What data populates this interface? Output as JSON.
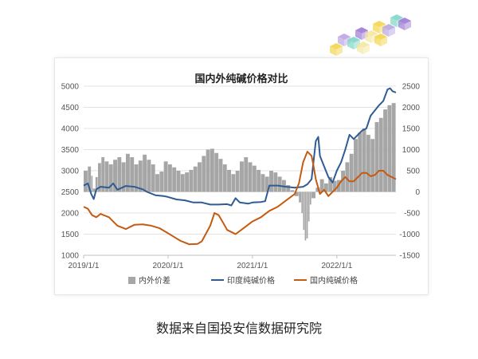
{
  "chart_data": {
    "type": "bar+line",
    "title": "国内外纯碱价格对比",
    "x_tick_labels": [
      "2019/1/1",
      "2020/1/1",
      "2021/1/1",
      "2022/1/1"
    ],
    "y_left": {
      "ylim": [
        1000,
        5000
      ],
      "ticks": [
        "1000",
        "1500",
        "2000",
        "2500",
        "3000",
        "3500",
        "4000",
        "4500",
        "5000"
      ]
    },
    "y_right": {
      "ylim": [
        -1500,
        2500
      ],
      "ticks": [
        "-1500",
        "-1000",
        "-500",
        "0",
        "500",
        "1000",
        "1500",
        "2000",
        "2500"
      ]
    },
    "x_domain": [
      2019.0,
      2022.7
    ],
    "grid": "horizontal",
    "legend_position": "bottom",
    "series": [
      {
        "name": "内外价差",
        "kind": "bar",
        "axis": "right",
        "color": "#a6a6a6",
        "points": [
          [
            2019.0,
            500
          ],
          [
            2019.05,
            600
          ],
          [
            2019.09,
            380
          ],
          [
            2019.11,
            80
          ],
          [
            2019.14,
            350
          ],
          [
            2019.17,
            680
          ],
          [
            2019.21,
            820
          ],
          [
            2019.25,
            720
          ],
          [
            2019.3,
            650
          ],
          [
            2019.35,
            760
          ],
          [
            2019.4,
            820
          ],
          [
            2019.45,
            700
          ],
          [
            2019.5,
            900
          ],
          [
            2019.55,
            820
          ],
          [
            2019.6,
            650
          ],
          [
            2019.65,
            740
          ],
          [
            2019.7,
            880
          ],
          [
            2019.75,
            760
          ],
          [
            2019.8,
            650
          ],
          [
            2019.85,
            420
          ],
          [
            2019.9,
            480
          ],
          [
            2019.95,
            720
          ],
          [
            2020.0,
            650
          ],
          [
            2020.05,
            580
          ],
          [
            2020.1,
            500
          ],
          [
            2020.15,
            420
          ],
          [
            2020.2,
            460
          ],
          [
            2020.25,
            520
          ],
          [
            2020.3,
            600
          ],
          [
            2020.35,
            700
          ],
          [
            2020.4,
            850
          ],
          [
            2020.45,
            1000
          ],
          [
            2020.5,
            1020
          ],
          [
            2020.55,
            920
          ],
          [
            2020.6,
            780
          ],
          [
            2020.65,
            650
          ],
          [
            2020.7,
            520
          ],
          [
            2020.75,
            420
          ],
          [
            2020.8,
            500
          ],
          [
            2020.85,
            720
          ],
          [
            2020.9,
            820
          ],
          [
            2020.95,
            700
          ],
          [
            2021.0,
            620
          ],
          [
            2021.05,
            520
          ],
          [
            2021.1,
            420
          ],
          [
            2021.15,
            360
          ],
          [
            2021.2,
            500
          ],
          [
            2021.25,
            460
          ],
          [
            2021.3,
            360
          ],
          [
            2021.35,
            280
          ],
          [
            2021.4,
            160
          ],
          [
            2021.45,
            40
          ],
          [
            2021.5,
            -100
          ],
          [
            2021.55,
            -250
          ],
          [
            2021.58,
            -500
          ],
          [
            2021.6,
            -900
          ],
          [
            2021.62,
            -1150
          ],
          [
            2021.64,
            -1100
          ],
          [
            2021.66,
            -700
          ],
          [
            2021.68,
            -300
          ],
          [
            2021.7,
            -150
          ],
          [
            2021.75,
            100
          ],
          [
            2021.8,
            300
          ],
          [
            2021.85,
            200
          ],
          [
            2021.9,
            350
          ],
          [
            2021.95,
            260
          ],
          [
            2022.0,
            280
          ],
          [
            2022.05,
            500
          ],
          [
            2022.1,
            700
          ],
          [
            2022.15,
            900
          ],
          [
            2022.2,
            1250
          ],
          [
            2022.25,
            1400
          ],
          [
            2022.3,
            1500
          ],
          [
            2022.35,
            1350
          ],
          [
            2022.4,
            1250
          ],
          [
            2022.45,
            1650
          ],
          [
            2022.5,
            1750
          ],
          [
            2022.55,
            1950
          ],
          [
            2022.6,
            2050
          ],
          [
            2022.65,
            2100
          ]
        ]
      },
      {
        "name": "印度纯碱价格",
        "kind": "line",
        "axis": "left",
        "color": "#2e5c93",
        "points": [
          [
            2019.0,
            2650
          ],
          [
            2019.05,
            2700
          ],
          [
            2019.09,
            2450
          ],
          [
            2019.12,
            2330
          ],
          [
            2019.15,
            2560
          ],
          [
            2019.2,
            2620
          ],
          [
            2019.3,
            2600
          ],
          [
            2019.35,
            2700
          ],
          [
            2019.4,
            2550
          ],
          [
            2019.5,
            2640
          ],
          [
            2019.6,
            2620
          ],
          [
            2019.7,
            2560
          ],
          [
            2019.75,
            2500
          ],
          [
            2019.85,
            2420
          ],
          [
            2019.95,
            2400
          ],
          [
            2020.0,
            2380
          ],
          [
            2020.1,
            2320
          ],
          [
            2020.2,
            2300
          ],
          [
            2020.3,
            2250
          ],
          [
            2020.4,
            2250
          ],
          [
            2020.5,
            2200
          ],
          [
            2020.6,
            2200
          ],
          [
            2020.7,
            2210
          ],
          [
            2020.75,
            2180
          ],
          [
            2020.8,
            2350
          ],
          [
            2020.85,
            2250
          ],
          [
            2020.95,
            2220
          ],
          [
            2021.0,
            2250
          ],
          [
            2021.1,
            2260
          ],
          [
            2021.15,
            2280
          ],
          [
            2021.2,
            2650
          ],
          [
            2021.3,
            2650
          ],
          [
            2021.4,
            2620
          ],
          [
            2021.5,
            2600
          ],
          [
            2021.6,
            2620
          ],
          [
            2021.65,
            2680
          ],
          [
            2021.7,
            2800
          ],
          [
            2021.75,
            3700
          ],
          [
            2021.78,
            3800
          ],
          [
            2021.8,
            3350
          ],
          [
            2021.85,
            3100
          ],
          [
            2021.9,
            2850
          ],
          [
            2021.95,
            2720
          ],
          [
            2022.0,
            3000
          ],
          [
            2022.05,
            3200
          ],
          [
            2022.1,
            3500
          ],
          [
            2022.15,
            3850
          ],
          [
            2022.2,
            3750
          ],
          [
            2022.25,
            3850
          ],
          [
            2022.3,
            3950
          ],
          [
            2022.35,
            4000
          ],
          [
            2022.4,
            4300
          ],
          [
            2022.5,
            4550
          ],
          [
            2022.55,
            4650
          ],
          [
            2022.6,
            4920
          ],
          [
            2022.63,
            4950
          ],
          [
            2022.66,
            4880
          ],
          [
            2022.7,
            4850
          ]
        ]
      },
      {
        "name": "国内纯碱价格",
        "kind": "line",
        "axis": "left",
        "color": "#c55a11",
        "points": [
          [
            2019.0,
            2150
          ],
          [
            2019.05,
            2100
          ],
          [
            2019.1,
            1950
          ],
          [
            2019.15,
            1900
          ],
          [
            2019.2,
            1980
          ],
          [
            2019.3,
            1900
          ],
          [
            2019.4,
            1700
          ],
          [
            2019.5,
            1620
          ],
          [
            2019.6,
            1720
          ],
          [
            2019.7,
            1730
          ],
          [
            2019.8,
            1700
          ],
          [
            2019.9,
            1640
          ],
          [
            2020.0,
            1520
          ],
          [
            2020.1,
            1400
          ],
          [
            2020.15,
            1340
          ],
          [
            2020.2,
            1300
          ],
          [
            2020.25,
            1260
          ],
          [
            2020.35,
            1270
          ],
          [
            2020.4,
            1330
          ],
          [
            2020.5,
            1700
          ],
          [
            2020.55,
            2000
          ],
          [
            2020.6,
            1950
          ],
          [
            2020.65,
            1780
          ],
          [
            2020.7,
            1600
          ],
          [
            2020.75,
            1550
          ],
          [
            2020.8,
            1500
          ],
          [
            2020.9,
            1650
          ],
          [
            2021.0,
            1800
          ],
          [
            2021.1,
            1900
          ],
          [
            2021.2,
            2050
          ],
          [
            2021.3,
            2150
          ],
          [
            2021.4,
            2300
          ],
          [
            2021.5,
            2450
          ],
          [
            2021.55,
            2700
          ],
          [
            2021.6,
            3200
          ],
          [
            2021.65,
            3450
          ],
          [
            2021.7,
            3350
          ],
          [
            2021.72,
            3150
          ],
          [
            2021.75,
            2800
          ],
          [
            2021.8,
            2450
          ],
          [
            2021.85,
            2550
          ],
          [
            2021.9,
            2400
          ],
          [
            2021.95,
            2500
          ],
          [
            2022.0,
            2600
          ],
          [
            2022.05,
            2750
          ],
          [
            2022.1,
            2850
          ],
          [
            2022.15,
            2750
          ],
          [
            2022.2,
            2750
          ],
          [
            2022.25,
            2850
          ],
          [
            2022.3,
            2950
          ],
          [
            2022.35,
            2950
          ],
          [
            2022.4,
            2870
          ],
          [
            2022.45,
            2900
          ],
          [
            2022.5,
            3000
          ],
          [
            2022.55,
            3000
          ],
          [
            2022.6,
            2900
          ],
          [
            2022.65,
            2850
          ],
          [
            2022.7,
            2800
          ]
        ]
      }
    ]
  },
  "caption": "数据来自国投安信数据研究院",
  "decoration": {
    "name": "colored-cubes-decoration",
    "colors": [
      "#f2d64b",
      "#b9a5e3",
      "#7fd6c8",
      "#9e7ad6",
      "#f5e7a0"
    ]
  }
}
